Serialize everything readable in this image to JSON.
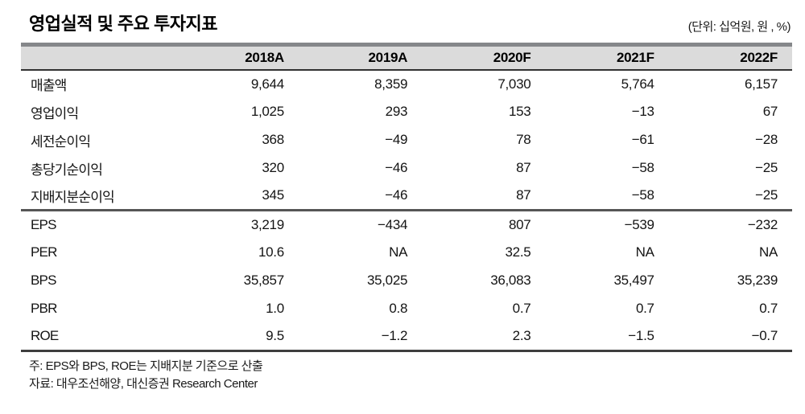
{
  "header": {
    "title": "영업실적 및 주요 투자지표",
    "unit_label": "(단위: 십억원, 원 , %)"
  },
  "table": {
    "columns": [
      "2018A",
      "2019A",
      "2020F",
      "2021F",
      "2022F"
    ],
    "sections": [
      {
        "rows": [
          {
            "label": "매출액",
            "values": [
              "9,644",
              "8,359",
              "7,030",
              "5,764",
              "6,157"
            ]
          },
          {
            "label": "영업이익",
            "values": [
              "1,025",
              "293",
              "153",
              "−13",
              "67"
            ]
          },
          {
            "label": "세전순이익",
            "values": [
              "368",
              "−49",
              "78",
              "−61",
              "−28"
            ]
          },
          {
            "label": "총당기순이익",
            "values": [
              "320",
              "−46",
              "87",
              "−58",
              "−25"
            ]
          },
          {
            "label": "지배지분순이익",
            "values": [
              "345",
              "−46",
              "87",
              "−58",
              "−25"
            ]
          }
        ]
      },
      {
        "rows": [
          {
            "label": "EPS",
            "values": [
              "3,219",
              "−434",
              "807",
              "−539",
              "−232"
            ]
          },
          {
            "label": "PER",
            "values": [
              "10.6",
              "NA",
              "32.5",
              "NA",
              "NA"
            ]
          },
          {
            "label": "BPS",
            "values": [
              "35,857",
              "35,025",
              "36,083",
              "35,497",
              "35,239"
            ]
          },
          {
            "label": "PBR",
            "values": [
              "1.0",
              "0.8",
              "0.7",
              "0.7",
              "0.7"
            ]
          },
          {
            "label": "ROE",
            "values": [
              "9.5",
              "−1.2",
              "2.3",
              "−1.5",
              "−0.7"
            ]
          }
        ]
      }
    ]
  },
  "footnotes": {
    "note": "주: EPS와 BPS, ROE는 지배지분 기준으로 산출",
    "source": "자료: 대우조선해양, 대신증권 Research Center"
  }
}
